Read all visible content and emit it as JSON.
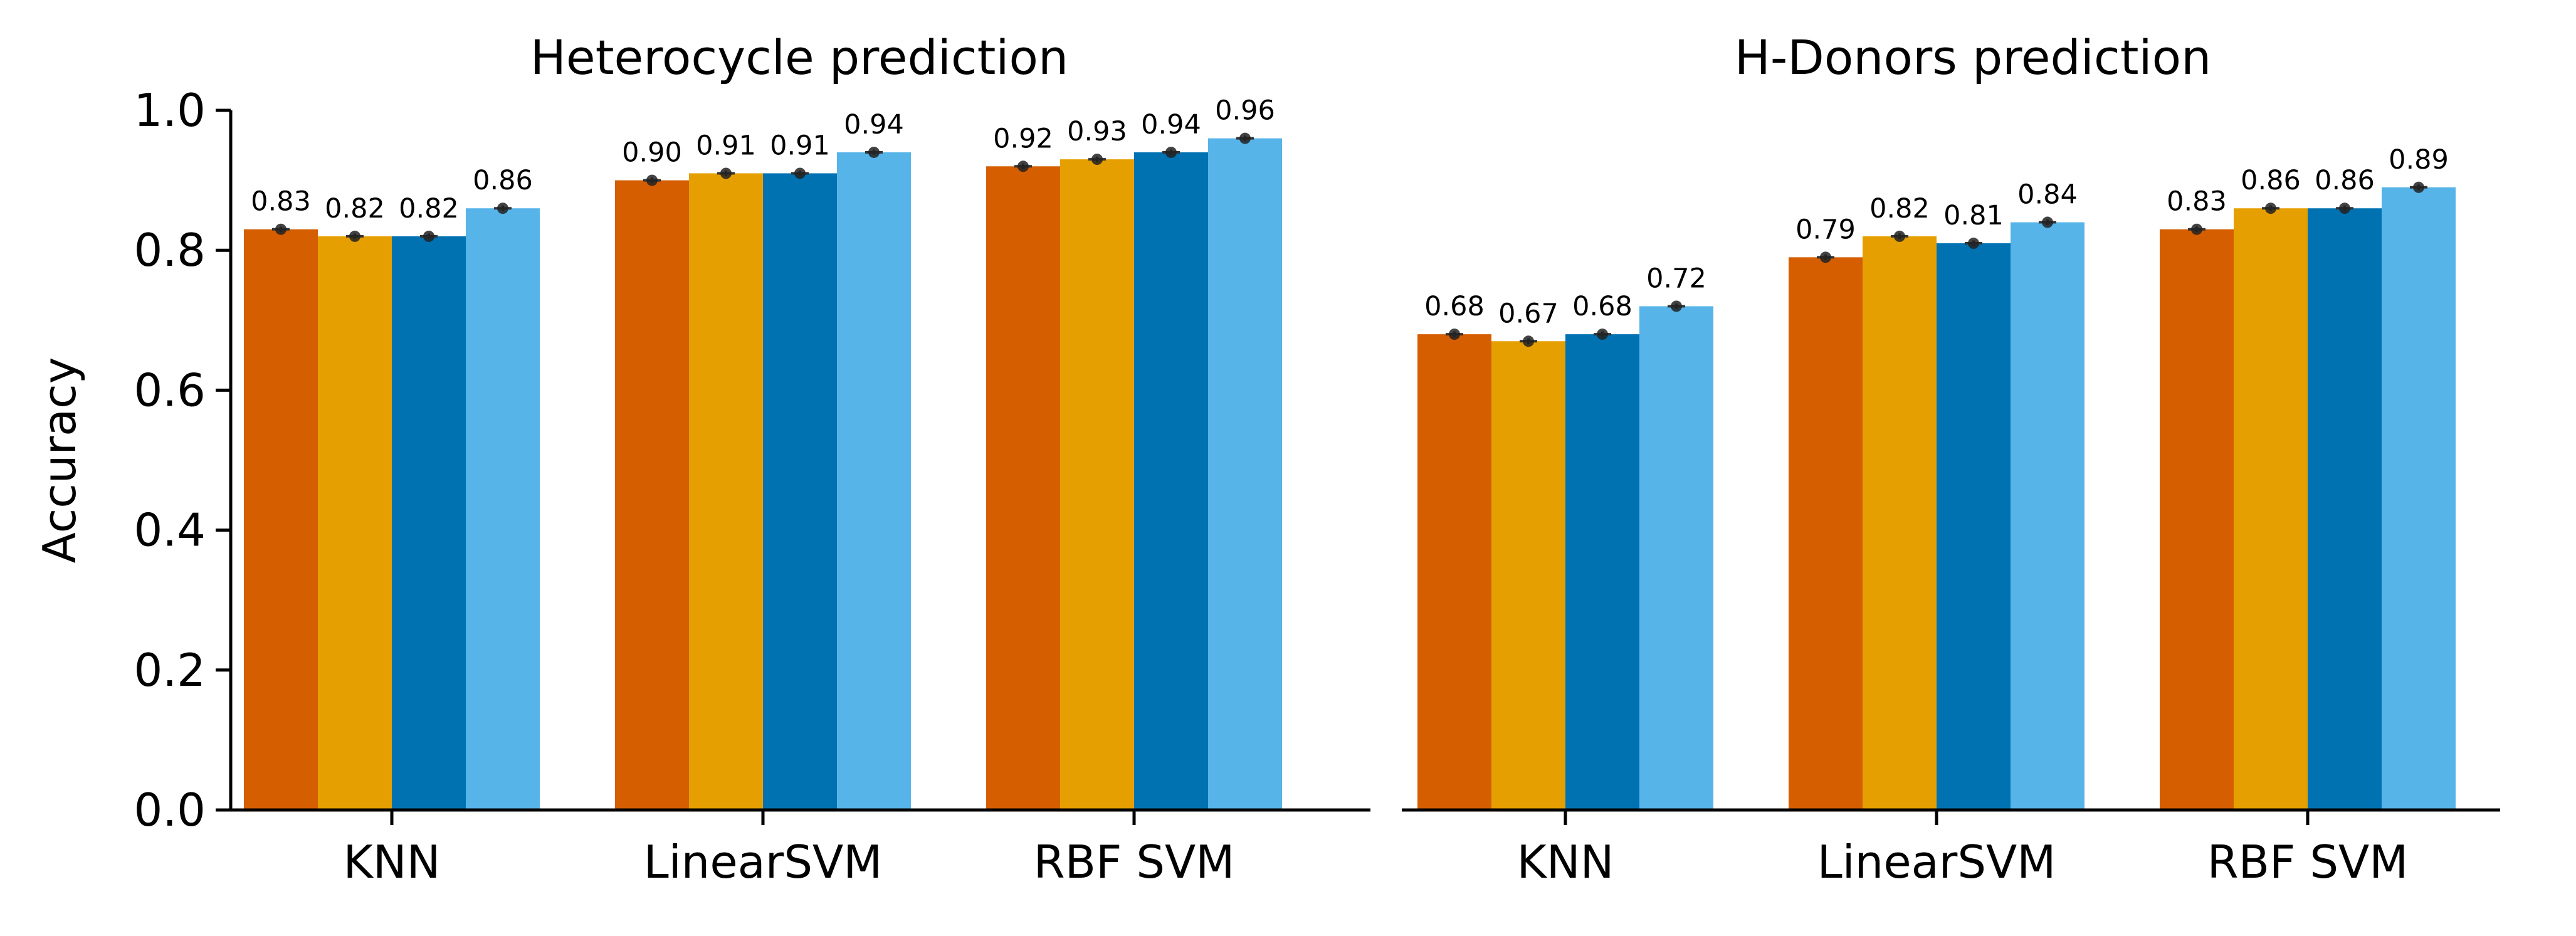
{
  "figure": {
    "ylabel": "Accuracy",
    "series_colors": [
      "#D55E00",
      "#E69F00",
      "#0072B2",
      "#56B4E9"
    ]
  },
  "chart_data": [
    {
      "type": "bar",
      "title": "Heterocycle prediction",
      "xlabel": "",
      "ylabel": "Accuracy",
      "ylim": [
        0,
        1.0
      ],
      "yticks": [
        "0.0",
        "0.2",
        "0.4",
        "0.6",
        "0.8",
        "1.0"
      ],
      "yticks_values": [
        0,
        0.2,
        0.4,
        0.6,
        0.8,
        1.0
      ],
      "categories": [
        "KNN",
        "LinearSVM",
        "RBF SVM"
      ],
      "legend": "none",
      "grid": false,
      "series": [
        {
          "values": [
            0.83,
            0.9,
            0.92
          ],
          "labels": [
            "0.83",
            "0.90",
            "0.92"
          ]
        },
        {
          "values": [
            0.82,
            0.91,
            0.93
          ],
          "labels": [
            "0.82",
            "0.91",
            "0.93"
          ]
        },
        {
          "values": [
            0.82,
            0.91,
            0.94
          ],
          "labels": [
            "0.82",
            "0.91",
            "0.94"
          ]
        },
        {
          "values": [
            0.86,
            0.94,
            0.96
          ],
          "labels": [
            "0.86",
            "0.94",
            "0.96"
          ]
        }
      ],
      "error": 0.004
    },
    {
      "type": "bar",
      "title": "H-Donors prediction",
      "xlabel": "",
      "ylabel": "",
      "ylim": [
        0,
        1.0
      ],
      "categories": [
        "KNN",
        "LinearSVM",
        "RBF SVM"
      ],
      "legend": "none",
      "grid": false,
      "series": [
        {
          "values": [
            0.68,
            0.79,
            0.83
          ],
          "labels": [
            "0.68",
            "0.79",
            "0.83"
          ]
        },
        {
          "values": [
            0.67,
            0.82,
            0.86
          ],
          "labels": [
            "0.67",
            "0.82",
            "0.86"
          ]
        },
        {
          "values": [
            0.68,
            0.81,
            0.86
          ],
          "labels": [
            "0.68",
            "0.81",
            "0.86"
          ]
        },
        {
          "values": [
            0.72,
            0.84,
            0.89
          ],
          "labels": [
            "0.72",
            "0.84",
            "0.89"
          ]
        }
      ],
      "error": 0.004
    }
  ]
}
